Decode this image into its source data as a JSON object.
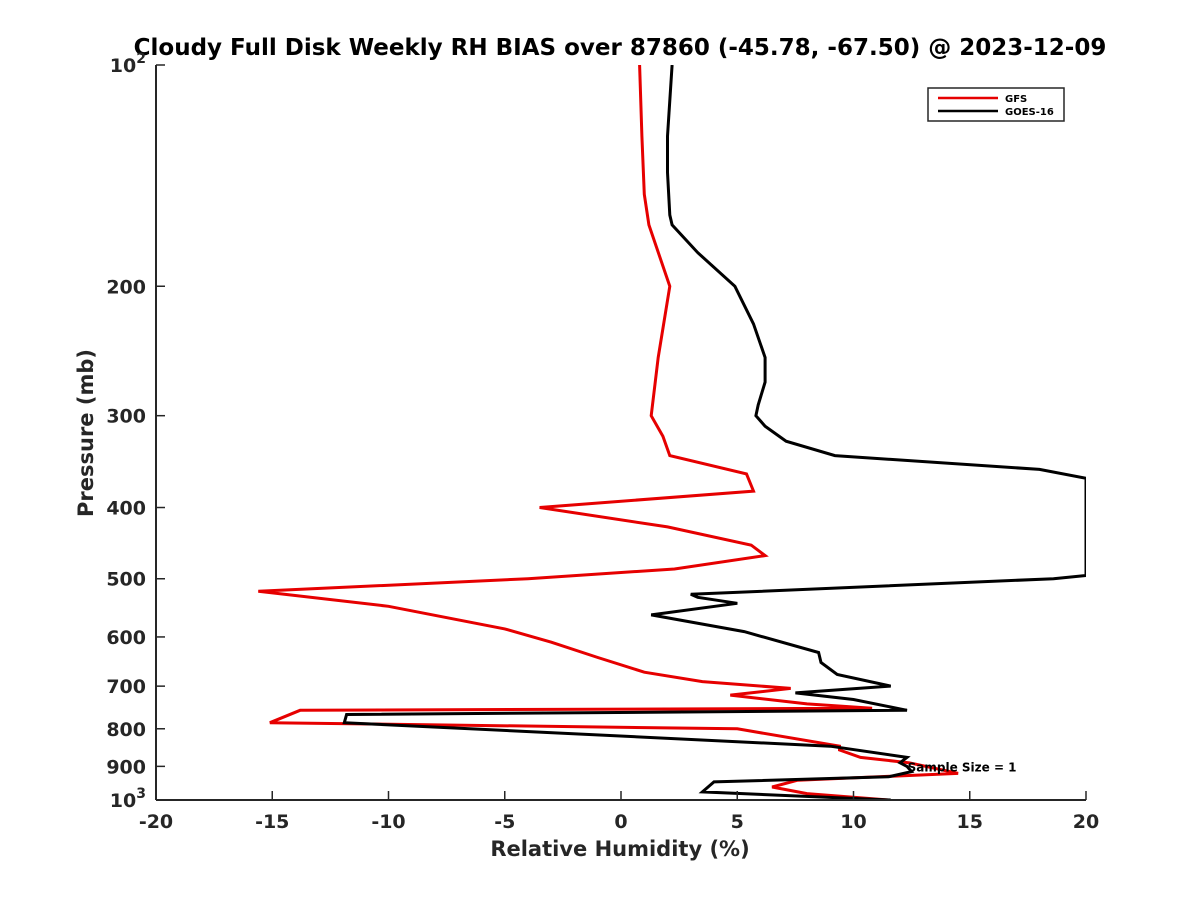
{
  "chart_data": {
    "type": "line",
    "title": "Cloudy Full Disk Weekly RH BIAS over 87860 (-45.78, -67.50) @ 2023-12-09",
    "xlabel": "Relative Humidity (%)",
    "ylabel": "Pressure (mb)",
    "xlim": [
      -20,
      20
    ],
    "ylim": [
      100,
      1000
    ],
    "yscale": "log",
    "y_reversed": true,
    "grid": false,
    "legend_position": "top-right",
    "x_ticks": [
      "-20",
      "-15",
      "-10",
      "-5",
      "0",
      "5",
      "10",
      "15",
      "20"
    ],
    "y_ticks": [
      {
        "value": 100,
        "base": "10",
        "exp": "2"
      },
      {
        "value": 200,
        "label": "200"
      },
      {
        "value": 300,
        "label": "300"
      },
      {
        "value": 400,
        "label": "400"
      },
      {
        "value": 500,
        "label": "500"
      },
      {
        "value": 600,
        "label": "600"
      },
      {
        "value": 700,
        "label": "700"
      },
      {
        "value": 800,
        "label": "800"
      },
      {
        "value": 900,
        "label": "900"
      },
      {
        "value": 1000,
        "base": "10",
        "exp": "3"
      }
    ],
    "annotation": {
      "text": "Sample Size = 1",
      "x": 12.5,
      "y": 900
    },
    "series": [
      {
        "name": "GFS",
        "color": "#e60000",
        "points": [
          [
            0.8,
            100
          ],
          [
            0.9,
            125
          ],
          [
            1.0,
            150
          ],
          [
            1.2,
            165
          ],
          [
            2.1,
            200
          ],
          [
            1.6,
            250
          ],
          [
            1.3,
            300
          ],
          [
            1.8,
            320
          ],
          [
            2.1,
            340
          ],
          [
            5.4,
            360
          ],
          [
            5.7,
            380
          ],
          [
            -3.5,
            400
          ],
          [
            2.0,
            425
          ],
          [
            5.6,
            450
          ],
          [
            6.2,
            465
          ],
          [
            2.3,
            485
          ],
          [
            -4.0,
            500
          ],
          [
            -15.6,
            520
          ],
          [
            -10.0,
            545
          ],
          [
            -5.0,
            585
          ],
          [
            -3.0,
            610
          ],
          [
            -1.0,
            640
          ],
          [
            1.0,
            670
          ],
          [
            3.5,
            690
          ],
          [
            7.3,
            705
          ],
          [
            4.7,
            720
          ],
          [
            8.0,
            740
          ],
          [
            10.8,
            750
          ],
          [
            -13.8,
            755
          ],
          [
            -15.1,
            785
          ],
          [
            5.0,
            800
          ],
          [
            9.4,
            845
          ],
          [
            9.4,
            855
          ],
          [
            10.3,
            875
          ],
          [
            12.4,
            890
          ],
          [
            14.5,
            920
          ],
          [
            7.6,
            940
          ],
          [
            6.5,
            960
          ],
          [
            8.0,
            980
          ],
          [
            11.5,
            1000
          ]
        ]
      },
      {
        "name": "GOES-16",
        "color": "#000000",
        "points": [
          [
            2.2,
            100
          ],
          [
            2.0,
            125
          ],
          [
            2.0,
            140
          ],
          [
            2.1,
            160
          ],
          [
            2.2,
            165
          ],
          [
            3.3,
            180
          ],
          [
            4.9,
            200
          ],
          [
            5.7,
            225
          ],
          [
            6.2,
            250
          ],
          [
            6.2,
            270
          ],
          [
            5.9,
            290
          ],
          [
            5.8,
            300
          ],
          [
            6.2,
            310
          ],
          [
            7.1,
            325
          ],
          [
            9.2,
            340
          ],
          [
            18.0,
            355
          ],
          [
            20.0,
            365
          ],
          [
            20.0,
            495
          ],
          [
            18.6,
            500
          ],
          [
            3.0,
            525
          ],
          [
            3.3,
            530
          ],
          [
            5.0,
            540
          ],
          [
            1.3,
            560
          ],
          [
            5.3,
            590
          ],
          [
            8.5,
            630
          ],
          [
            8.6,
            650
          ],
          [
            9.3,
            675
          ],
          [
            11.6,
            700
          ],
          [
            7.5,
            715
          ],
          [
            10.0,
            730
          ],
          [
            12.3,
            755
          ],
          [
            -11.8,
            765
          ],
          [
            -11.9,
            785
          ],
          [
            9.0,
            845
          ],
          [
            12.3,
            875
          ],
          [
            12.0,
            890
          ],
          [
            12.3,
            900
          ],
          [
            12.5,
            915
          ],
          [
            11.5,
            930
          ],
          [
            4.0,
            945
          ],
          [
            3.5,
            975
          ],
          [
            11.6,
            1000
          ]
        ]
      }
    ]
  }
}
